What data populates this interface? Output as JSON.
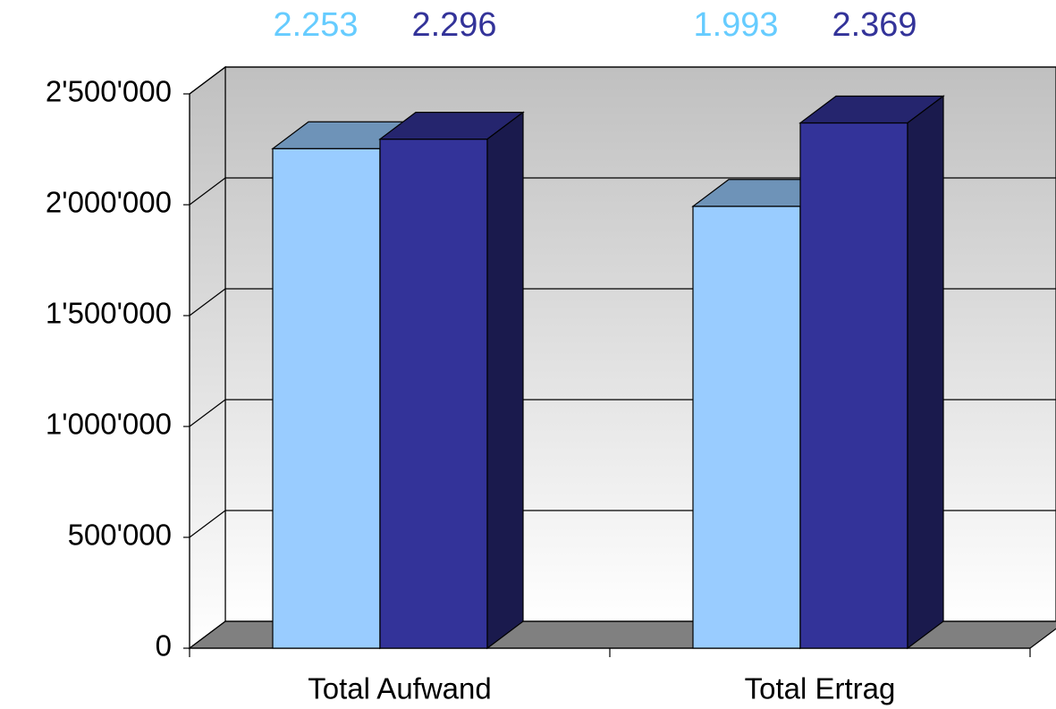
{
  "chart_data": {
    "type": "bar3d",
    "categories": [
      "Total Aufwand",
      "Total Ertrag"
    ],
    "series": [
      {
        "color": "#99ccff",
        "label_color": "#66ccff",
        "values": [
          2253000,
          1993000
        ],
        "value_labels": [
          "2.253",
          "1.993"
        ]
      },
      {
        "color": "#333399",
        "label_color": "#333399",
        "values": [
          2296000,
          2369000
        ],
        "value_labels": [
          "2.296",
          "2.369"
        ]
      }
    ],
    "ylim": [
      0,
      2500000
    ],
    "yticks": [
      0,
      {
        "value": 500000,
        "label": "500'000"
      },
      {
        "value": 1000000,
        "label": "1'000'000"
      },
      {
        "value": 1500000,
        "label": "1'500'000"
      },
      {
        "value": 2000000,
        "label": "2'000'000"
      },
      {
        "value": 2500000,
        "label": "2'500'000"
      }
    ],
    "grid": true
  }
}
